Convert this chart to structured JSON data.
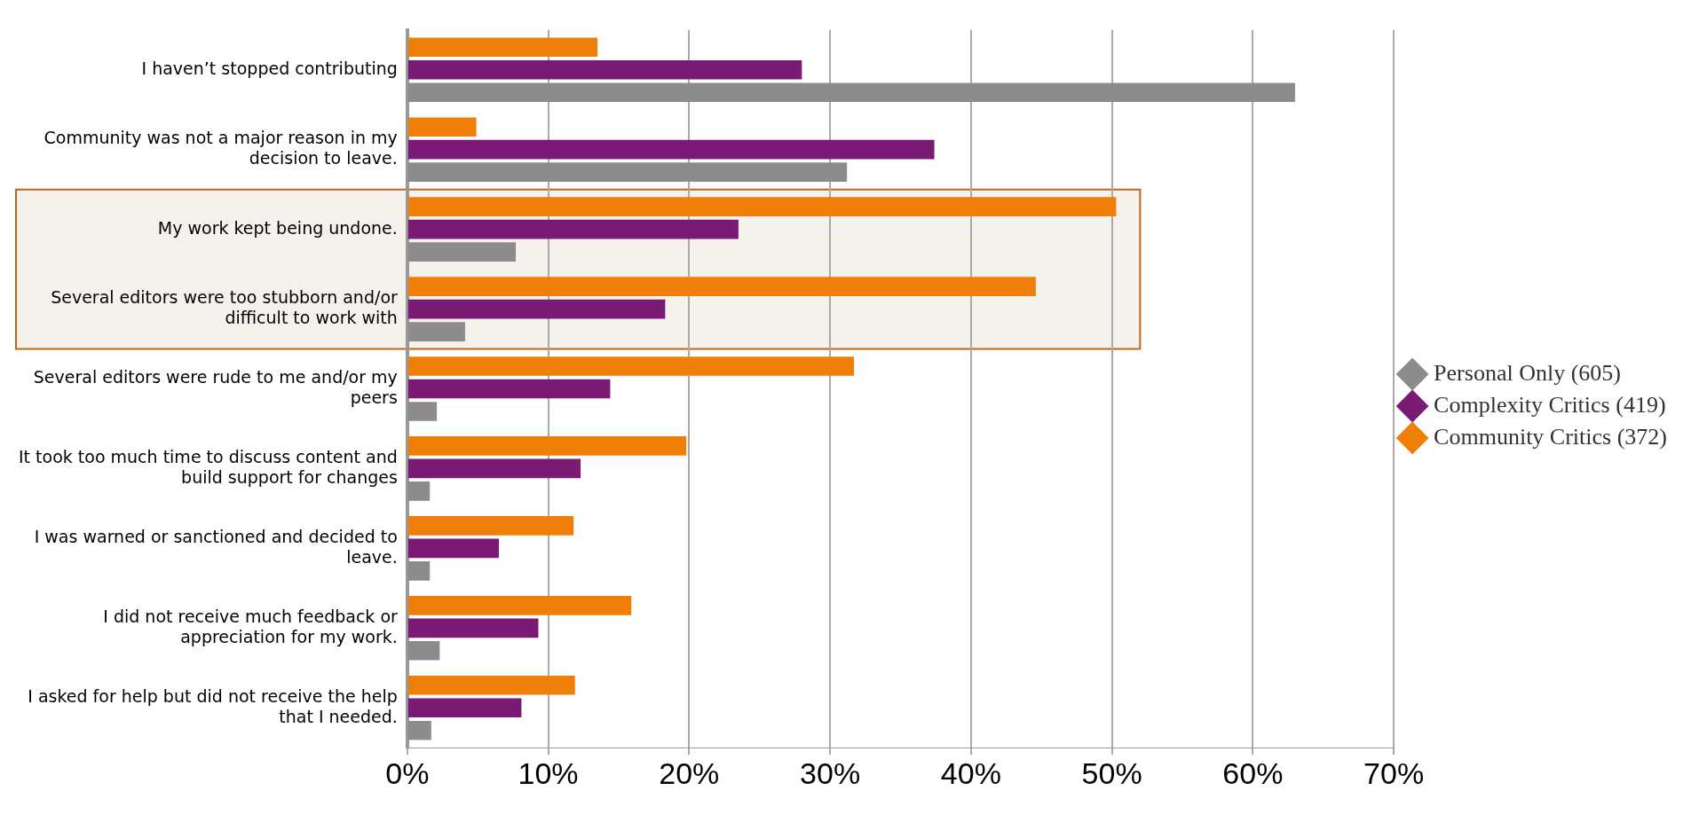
{
  "chart_data": {
    "type": "bar",
    "orientation": "horizontal",
    "categories": [
      "I haven’t stopped contributing",
      "Community was not a major reason in my decision to leave.",
      "My work kept being undone.",
      "Several editors were too stubborn and/or difficult to work with",
      "Several editors were rude to me and/or my peers",
      "It took too much time to discuss content and build support for changes",
      "I was warned or sanctioned and decided to leave.",
      "I did not receive much feedback or appreciation for my work.",
      "I asked for help but did not receive the help that I needed."
    ],
    "series": [
      {
        "name": "Community Critics (372)",
        "color": "#f07f09",
        "values": [
          13.5,
          4.9,
          50.3,
          44.6,
          31.7,
          19.8,
          11.8,
          15.9,
          11.9
        ]
      },
      {
        "name": "Complexity Critics (419)",
        "color": "#7b1a74",
        "values": [
          28,
          37.4,
          23.5,
          18.3,
          14.4,
          12.3,
          6.5,
          9.3,
          8.1
        ]
      },
      {
        "name": "Personal Only (605)",
        "color": "#8c8c8c",
        "values": [
          63,
          31.2,
          7.7,
          4.1,
          2.1,
          1.6,
          1.6,
          2.3,
          1.7
        ]
      }
    ],
    "xlim": [
      0,
      70
    ],
    "xticks": [
      {
        "value": 0,
        "label": "0%"
      },
      {
        "value": 10,
        "label": "10%"
      },
      {
        "value": 20,
        "label": "20%"
      },
      {
        "value": 30,
        "label": "30%"
      },
      {
        "value": 40,
        "label": "40%"
      },
      {
        "value": 50,
        "label": "50%"
      },
      {
        "value": 60,
        "label": "60%"
      },
      {
        "value": 70,
        "label": "70%"
      }
    ],
    "bands": [
      {
        "axis": "y",
        "from": "My work kept being undone.",
        "to": "Several editors were too stubborn and/or difficult to work with",
        "color": "#f5f1ed"
      }
    ],
    "grid": "x",
    "legend": "right",
    "marker": "diamond"
  }
}
